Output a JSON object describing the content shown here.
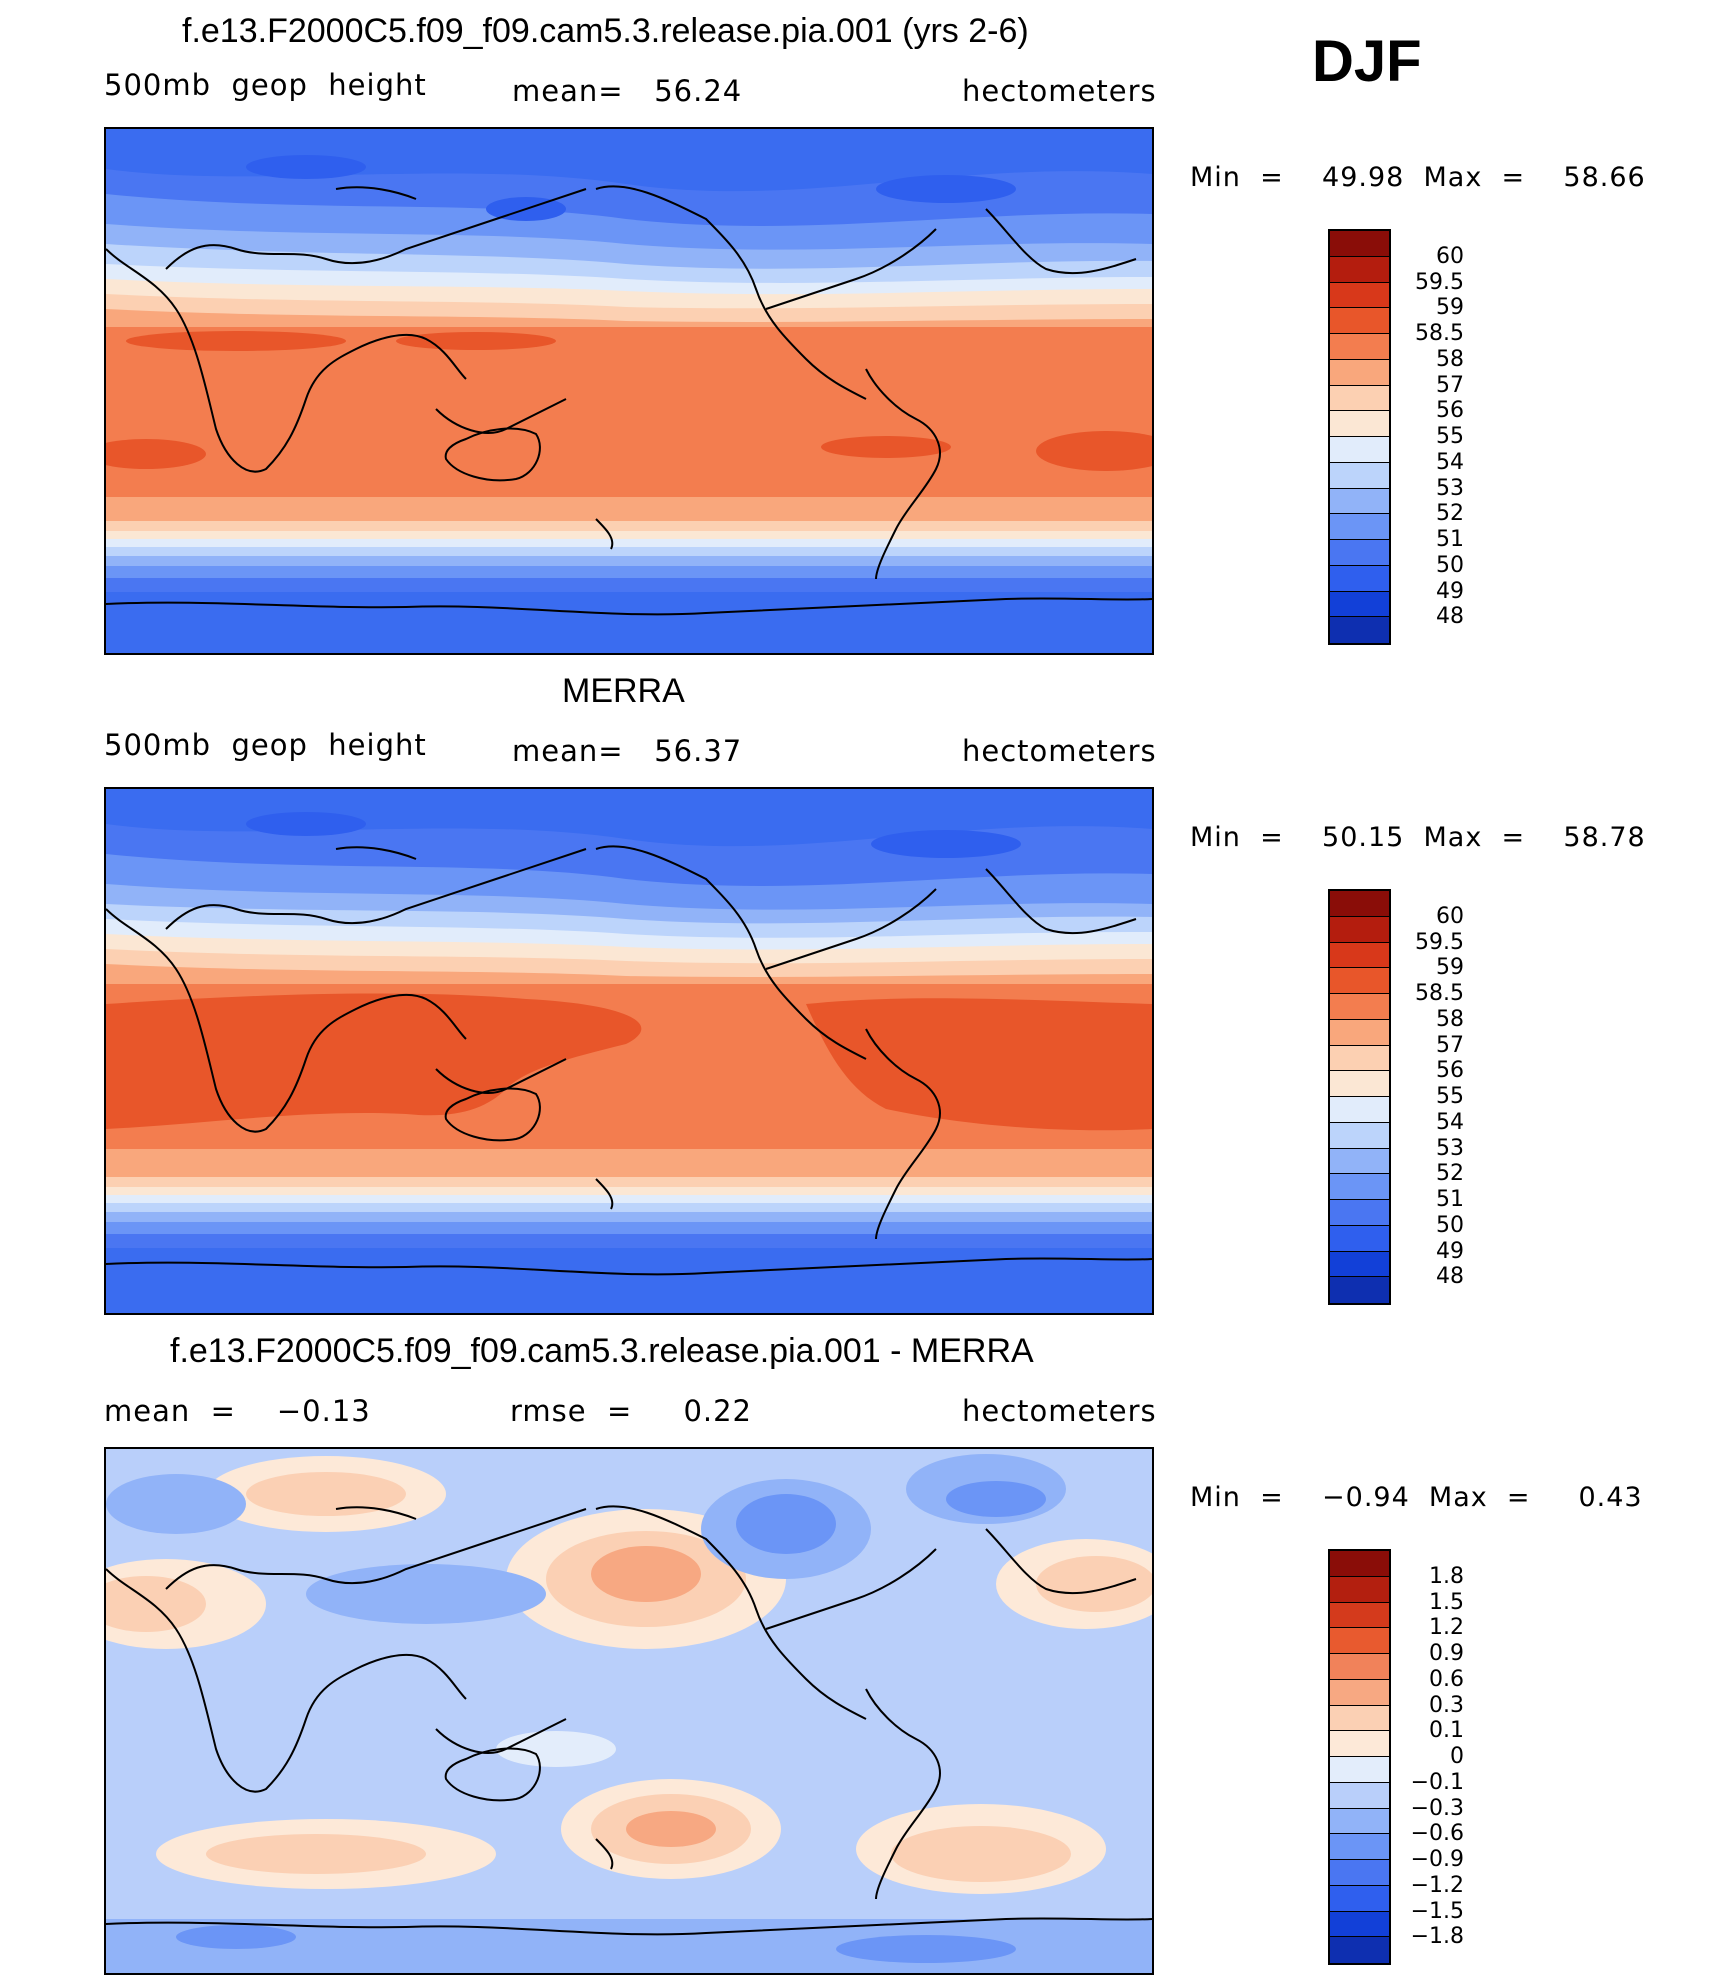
{
  "season": "DJF",
  "colors": {
    "abs_palette": [
      "#0b1f8e",
      "#0e2fb0",
      "#1240d8",
      "#2f5fee",
      "#4a76f2",
      "#6b95f6",
      "#91b3f8",
      "#bcd4fb",
      "#e1ecfb",
      "#fbe7d4",
      "#fcd0b2",
      "#f9a77c",
      "#f37d4f",
      "#e8562a",
      "#d8381a",
      "#b41d0e",
      "#8a0d08"
    ],
    "diff_palette": [
      "#0b1f8e",
      "#0e2fb0",
      "#1240d8",
      "#2f5fee",
      "#4a76f2",
      "#6b95f6",
      "#91b3f8",
      "#b9cffa",
      "#e3edfb",
      "#fde9d8",
      "#fbd0b4",
      "#f7a882",
      "#f1825a",
      "#e85a2f",
      "#d43a1c",
      "#b31f0f",
      "#8a0d08"
    ]
  },
  "panels": [
    {
      "title": "f.e13.F2000C5.f09_f09.cam5.3.release.pia.001 (yrs 2-6)",
      "left_label": "500mb  geop  height",
      "center_label": "mean=   56.24",
      "units": "hectometers",
      "minmax": "Min  =    49.98  Max  =    58.66",
      "levels": [
        "60",
        "59.5",
        "59",
        "58.5",
        "58",
        "57",
        "56",
        "55",
        "54",
        "53",
        "52",
        "51",
        "50",
        "49",
        "48"
      ],
      "map_icon": "world-map-geopotential-model"
    },
    {
      "title": "MERRA",
      "left_label": "500mb  geop  height",
      "center_label": "mean=   56.37",
      "units": "hectometers",
      "minmax": "Min  =    50.15  Max  =    58.78",
      "levels": [
        "60",
        "59.5",
        "59",
        "58.5",
        "58",
        "57",
        "56",
        "55",
        "54",
        "53",
        "52",
        "51",
        "50",
        "49",
        "48"
      ],
      "map_icon": "world-map-geopotential-merra"
    },
    {
      "title": "f.e13.F2000C5.f09_f09.cam5.3.release.pia.001 - MERRA",
      "left_label": "mean  =    −0.13",
      "center_label": "rmse  =     0.22",
      "units": "hectometers",
      "minmax": "Min  =    −0.94  Max  =     0.43",
      "levels": [
        "1.8",
        "1.5",
        "1.2",
        "0.9",
        "0.6",
        "0.3",
        "0.1",
        "0",
        "−0.1",
        "−0.3",
        "−0.6",
        "−0.9",
        "−1.2",
        "−1.5",
        "−1.8"
      ],
      "map_icon": "world-map-difference"
    }
  ]
}
